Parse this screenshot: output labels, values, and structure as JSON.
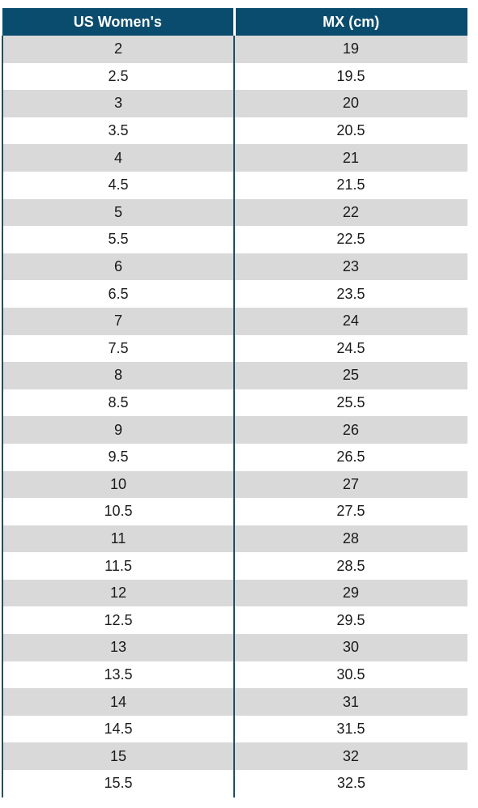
{
  "colors": {
    "header_bg": "#0a4c6e",
    "header_text": "#ffffff",
    "row_shade": "#d9d9d9",
    "divider": "#1f4e6b"
  },
  "table": {
    "headers": [
      "US Women's",
      "MX (cm)"
    ],
    "rows": [
      [
        "2",
        "19"
      ],
      [
        "2.5",
        "19.5"
      ],
      [
        "3",
        "20"
      ],
      [
        "3.5",
        "20.5"
      ],
      [
        "4",
        "21"
      ],
      [
        "4.5",
        "21.5"
      ],
      [
        "5",
        "22"
      ],
      [
        "5.5",
        "22.5"
      ],
      [
        "6",
        "23"
      ],
      [
        "6.5",
        "23.5"
      ],
      [
        "7",
        "24"
      ],
      [
        "7.5",
        "24.5"
      ],
      [
        "8",
        "25"
      ],
      [
        "8.5",
        "25.5"
      ],
      [
        "9",
        "26"
      ],
      [
        "9.5",
        "26.5"
      ],
      [
        "10",
        "27"
      ],
      [
        "10.5",
        "27.5"
      ],
      [
        "11",
        "28"
      ],
      [
        "11.5",
        "28.5"
      ],
      [
        "12",
        "29"
      ],
      [
        "12.5",
        "29.5"
      ],
      [
        "13",
        "30"
      ],
      [
        "13.5",
        "30.5"
      ],
      [
        "14",
        "31"
      ],
      [
        "14.5",
        "31.5"
      ],
      [
        "15",
        "32"
      ],
      [
        "15.5",
        "32.5"
      ]
    ]
  }
}
